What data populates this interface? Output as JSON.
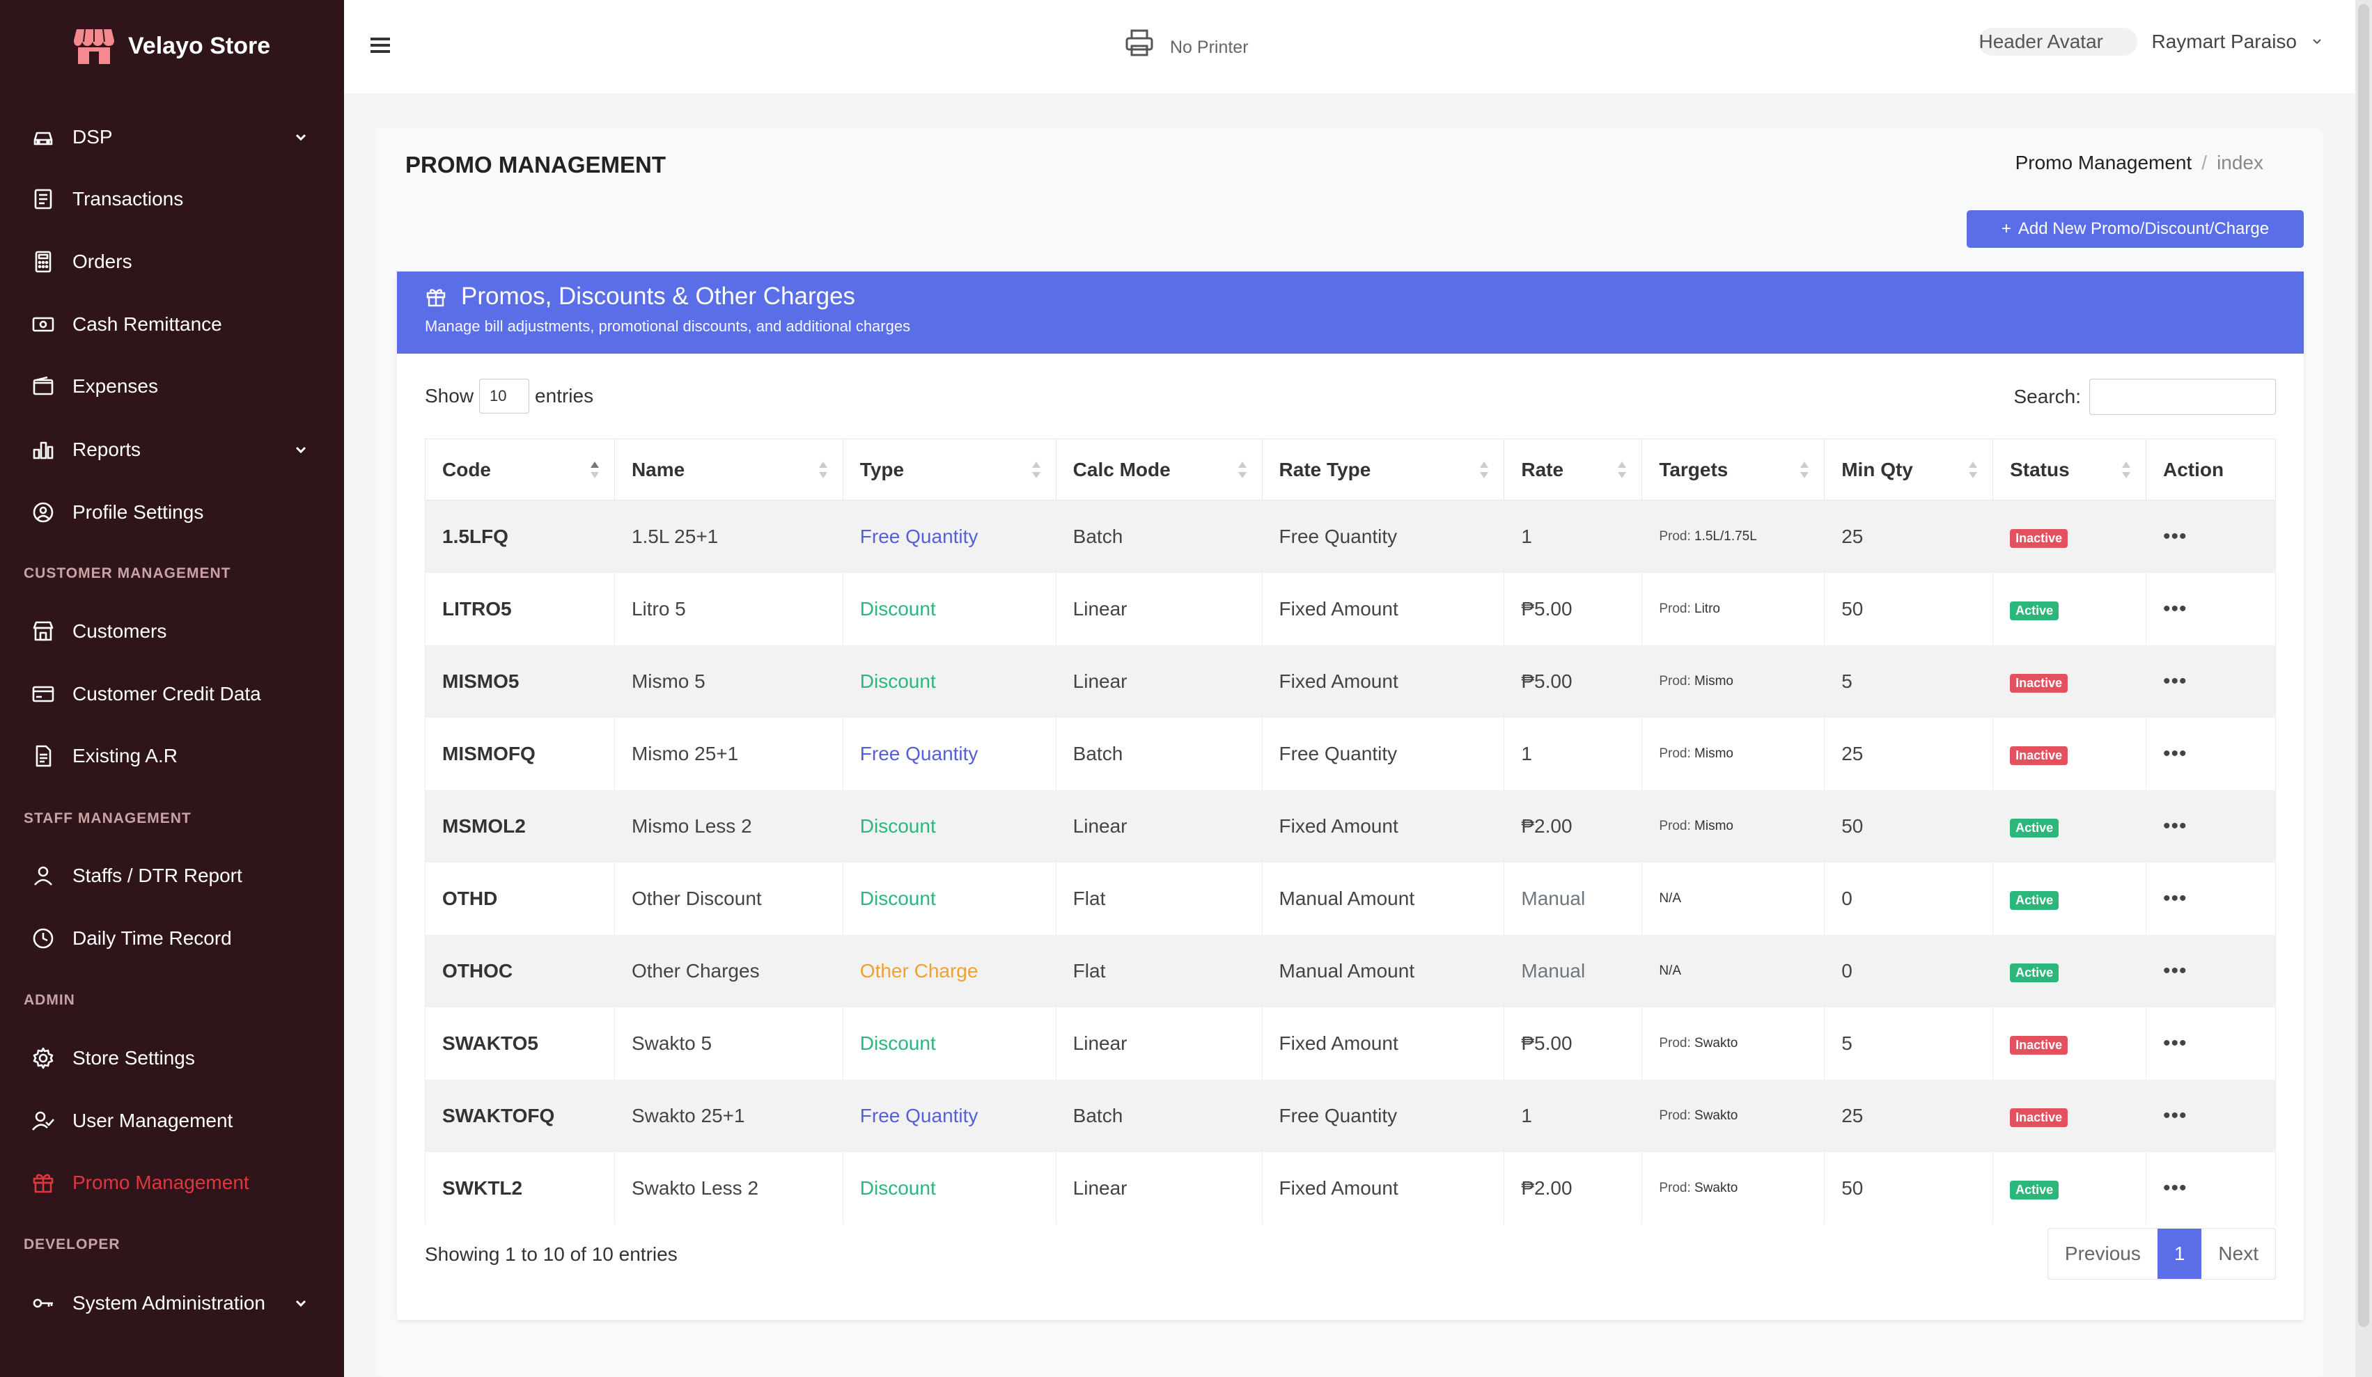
{
  "brand": {
    "name": "Velayo Store"
  },
  "sidebar": {
    "items": [
      {
        "label": "DSP",
        "icon": "car-icon",
        "chevron": true
      },
      {
        "label": "Transactions",
        "icon": "receipt-icon"
      },
      {
        "label": "Orders",
        "icon": "calculator-icon"
      },
      {
        "label": "Cash Remittance",
        "icon": "cash-icon"
      },
      {
        "label": "Expenses",
        "icon": "wallet-icon"
      },
      {
        "label": "Reports",
        "icon": "chart-icon",
        "chevron": true
      },
      {
        "label": "Profile Settings",
        "icon": "user-circle-icon"
      },
      {
        "label": "Customers",
        "icon": "store-icon"
      },
      {
        "label": "Customer Credit Data",
        "icon": "credit-card-icon"
      },
      {
        "label": "Existing A.R",
        "icon": "document-icon"
      },
      {
        "label": "Staffs / DTR Report",
        "icon": "user-icon"
      },
      {
        "label": "Daily Time Record",
        "icon": "clock-icon"
      },
      {
        "label": "Store Settings",
        "icon": "gear-icon"
      },
      {
        "label": "User Management",
        "icon": "user-check-icon"
      },
      {
        "label": "Promo Management",
        "icon": "gift-icon",
        "active": true
      },
      {
        "label": "System Administration",
        "icon": "key-icon",
        "chevron": true
      }
    ],
    "sections": {
      "customer": "CUSTOMER MANAGEMENT",
      "staff": "STAFF MANAGEMENT",
      "admin": "ADMIN",
      "developer": "DEVELOPER"
    },
    "active_color": "#e0373f"
  },
  "header": {
    "printer": "No Printer",
    "avatar_alt": "Header Avatar",
    "user_name": "Raymart Paraiso"
  },
  "page": {
    "title": "PROMO MANAGEMENT",
    "breadcrumb": {
      "parent": "Promo Management",
      "current": "index"
    },
    "add_button": "Add New Promo/Discount/Charge"
  },
  "panel": {
    "title": "Promos, Discounts & Other Charges",
    "subtitle": "Manage bill adjustments, promotional discounts, and additional charges",
    "accent": "#5a6ee8"
  },
  "table": {
    "show_label": "Show",
    "entries_value": "10",
    "entries_label": "entries",
    "search_label": "Search:",
    "columns": [
      "Code",
      "Name",
      "Type",
      "Calc Mode",
      "Rate Type",
      "Rate",
      "Targets",
      "Min Qty",
      "Status",
      "Action"
    ],
    "rows": [
      {
        "code": "1.5LFQ",
        "name": "1.5L 25+1",
        "type": "Free Quantity",
        "calc": "Batch",
        "rate_type": "Free Quantity",
        "rate": "1",
        "target_prefix": "Prod:",
        "target": "1.5L/1.75L",
        "min_qty": "25",
        "status": "Inactive"
      },
      {
        "code": "LITRO5",
        "name": "Litro 5",
        "type": "Discount",
        "calc": "Linear",
        "rate_type": "Fixed Amount",
        "rate": "₱5.00",
        "target_prefix": "Prod:",
        "target": "Litro",
        "min_qty": "50",
        "status": "Active"
      },
      {
        "code": "MISMO5",
        "name": "Mismo 5",
        "type": "Discount",
        "calc": "Linear",
        "rate_type": "Fixed Amount",
        "rate": "₱5.00",
        "target_prefix": "Prod:",
        "target": "Mismo",
        "min_qty": "5",
        "status": "Inactive"
      },
      {
        "code": "MISMOFQ",
        "name": "Mismo 25+1",
        "type": "Free Quantity",
        "calc": "Batch",
        "rate_type": "Free Quantity",
        "rate": "1",
        "target_prefix": "Prod:",
        "target": "Mismo",
        "min_qty": "25",
        "status": "Inactive"
      },
      {
        "code": "MSMOL2",
        "name": "Mismo Less 2",
        "type": "Discount",
        "calc": "Linear",
        "rate_type": "Fixed Amount",
        "rate": "₱2.00",
        "target_prefix": "Prod:",
        "target": "Mismo",
        "min_qty": "50",
        "status": "Active"
      },
      {
        "code": "OTHD",
        "name": "Other Discount",
        "type": "Discount",
        "calc": "Flat",
        "rate_type": "Manual Amount",
        "rate": "Manual",
        "target_prefix": "",
        "target": "N/A",
        "min_qty": "0",
        "status": "Active"
      },
      {
        "code": "OTHOC",
        "name": "Other Charges",
        "type": "Other Charge",
        "calc": "Flat",
        "rate_type": "Manual Amount",
        "rate": "Manual",
        "target_prefix": "",
        "target": "N/A",
        "min_qty": "0",
        "status": "Active"
      },
      {
        "code": "SWAKTO5",
        "name": "Swakto 5",
        "type": "Discount",
        "calc": "Linear",
        "rate_type": "Fixed Amount",
        "rate": "₱5.00",
        "target_prefix": "Prod:",
        "target": "Swakto",
        "min_qty": "5",
        "status": "Inactive"
      },
      {
        "code": "SWAKTOFQ",
        "name": "Swakto 25+1",
        "type": "Free Quantity",
        "calc": "Batch",
        "rate_type": "Free Quantity",
        "rate": "1",
        "target_prefix": "Prod:",
        "target": "Swakto",
        "min_qty": "25",
        "status": "Inactive"
      },
      {
        "code": "SWKTL2",
        "name": "Swakto Less 2",
        "type": "Discount",
        "calc": "Linear",
        "rate_type": "Fixed Amount",
        "rate": "₱2.00",
        "target_prefix": "Prod:",
        "target": "Swakto",
        "min_qty": "50",
        "status": "Active"
      }
    ],
    "action_glyph": "•••",
    "showing": "Showing 1 to 10 of 10 entries",
    "pager": {
      "prev": "Previous",
      "current": "1",
      "next": "Next"
    }
  }
}
